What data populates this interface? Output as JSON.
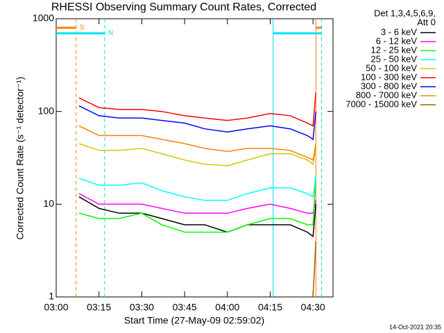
{
  "chart_data": {
    "type": "line",
    "title": "RHESSI Observing Summary Count Rates, Corrected",
    "x_label": "Start Time (27-May-09 02:59:02)",
    "y_label": "Corrected Count Rate (s⁻¹ detector⁻¹)",
    "legend_title": [
      "Det 1,3,4,5,6,9,",
      "Att 0"
    ],
    "footer": "14-Oct-2021 20:35",
    "log_y": true,
    "xlim": [
      "03:00",
      "04:37"
    ],
    "xticks": [
      "03:00",
      "03:15",
      "03:30",
      "03:45",
      "04:00",
      "04:15",
      "04:30"
    ],
    "ylim": [
      1,
      1000
    ],
    "yticks": [
      1,
      10,
      100,
      1000
    ],
    "x": [
      "03:08",
      "03:15",
      "03:22",
      "03:30",
      "03:37",
      "03:45",
      "03:52",
      "04:00",
      "04:07",
      "04:15",
      "04:22",
      "04:28",
      "04:30",
      "04:31"
    ],
    "series": [
      {
        "name": "3 - 6 keV",
        "color": "#000000",
        "values": [
          12,
          9,
          8,
          8,
          7,
          6,
          6,
          5,
          6,
          6,
          6,
          5,
          4.5,
          10
        ]
      },
      {
        "name": "6 - 12 keV",
        "color": "#ff00ff",
        "values": [
          13,
          10,
          10,
          10,
          9,
          8,
          8,
          8,
          9,
          10,
          9,
          8,
          8,
          11
        ]
      },
      {
        "name": "12 - 25 keV",
        "color": "#00ff00",
        "values": [
          8,
          7,
          7,
          8,
          6,
          5,
          5,
          5,
          6,
          7,
          7,
          6,
          6,
          20
        ]
      },
      {
        "name": "25 - 50 keV",
        "color": "#00ffff",
        "values": [
          19,
          16,
          16,
          17,
          14,
          12,
          11,
          11,
          13,
          15,
          15,
          13,
          12,
          20
        ]
      },
      {
        "name": "50 - 100 keV",
        "color": "#d0c800",
        "values": [
          45,
          38,
          38,
          40,
          35,
          30,
          27,
          26,
          30,
          35,
          35,
          30,
          27,
          40
        ]
      },
      {
        "name": "100 - 300 keV",
        "color": "#ff0000",
        "values": [
          140,
          110,
          105,
          105,
          100,
          90,
          85,
          80,
          85,
          95,
          90,
          75,
          70,
          160
        ]
      },
      {
        "name": "300 - 800 keV",
        "color": "#0000ff",
        "values": [
          115,
          90,
          85,
          85,
          80,
          75,
          65,
          60,
          65,
          70,
          65,
          55,
          50,
          100
        ]
      },
      {
        "name": "800 - 7000 keV",
        "color": "#ff8000",
        "values": [
          70,
          55,
          55,
          55,
          50,
          45,
          40,
          37,
          40,
          40,
          38,
          32,
          30,
          45
        ]
      },
      {
        "name": "7000 - 15000 keV",
        "color": "#a06000",
        "values": [
          null,
          null,
          null,
          null,
          null,
          null,
          null,
          null,
          null,
          null,
          null,
          null,
          1,
          4
        ]
      }
    ],
    "flags": [
      {
        "label": "S",
        "color": "#ff8000",
        "intervals": [
          [
            "03:00",
            "03:07"
          ],
          [
            "04:31",
            "04:33"
          ]
        ]
      },
      {
        "label": "N",
        "color": "#00e0f0",
        "intervals": [
          [
            "03:00",
            "03:17"
          ],
          [
            "04:16",
            "04:33"
          ]
        ]
      }
    ]
  }
}
